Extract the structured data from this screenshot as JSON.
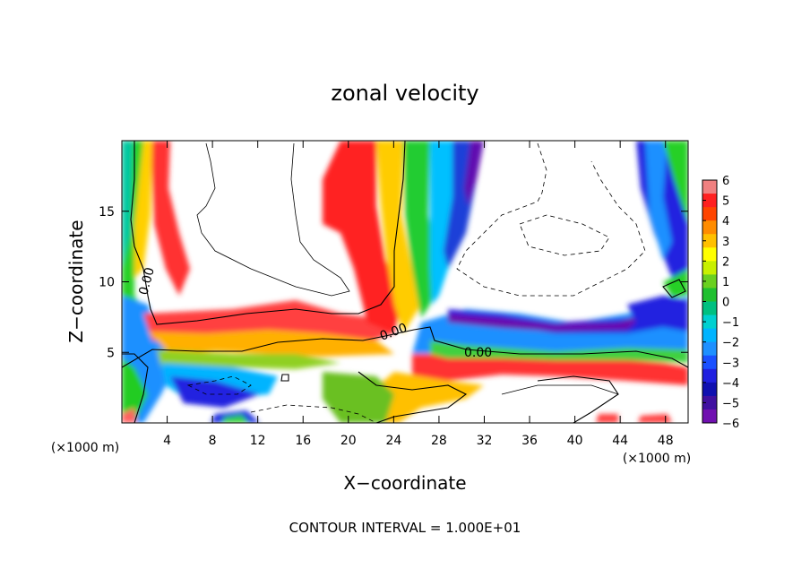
{
  "chart_data": {
    "type": "heatmap",
    "title": "zonal velocity",
    "xlabel": "X−coordinate",
    "ylabel": "Z−coordinate",
    "x_units": "(×1000 m)",
    "y_units": "(×1000 m)",
    "xlim": [
      0,
      50
    ],
    "ylim": [
      0,
      20
    ],
    "x_ticks": [
      4,
      8,
      12,
      16,
      20,
      24,
      28,
      32,
      36,
      40,
      44,
      48
    ],
    "y_ticks": [
      5,
      10,
      15
    ],
    "colorbar": {
      "min": -6,
      "max": 6,
      "labels": [
        "6",
        "5",
        "4",
        "3",
        "2",
        "1",
        "0",
        "−1",
        "−2",
        "−3",
        "−4",
        "−5",
        "−6"
      ]
    },
    "contour_labels": [
      {
        "text": "0.00",
        "x": 1.5,
        "y": 10.6
      },
      {
        "text": "0.00",
        "x": 24.8,
        "y": 6.6
      },
      {
        "text": "0.00",
        "x": 31.5,
        "y": 5.0
      }
    ],
    "footer": "CONTOUR INTERVAL = 1.000E+01"
  }
}
